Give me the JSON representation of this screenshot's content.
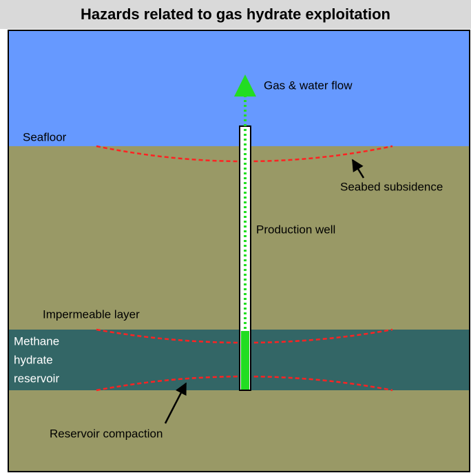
{
  "title": "Hazards related to gas hydrate exploitation",
  "labels": {
    "gas_flow": "Gas & water flow",
    "seafloor": "Seafloor",
    "subsidence": "Seabed subsidence",
    "well": "Production well",
    "impermeable": "Impermeable layer",
    "reservoir": [
      "Methane",
      "hydrate",
      "reservoir"
    ],
    "compaction": "Reservoir compaction"
  }
}
